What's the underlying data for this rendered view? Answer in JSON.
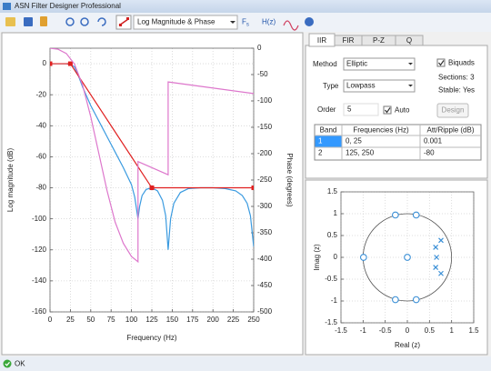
{
  "window": {
    "title": "ASN Filter Designer Professional"
  },
  "toolbar": {
    "view": "Log Magnitude & Phase",
    "fs": {
      "main": "F",
      "sub": "s"
    },
    "hz": "H(z)"
  },
  "tabs": [
    "IIR",
    "FIR",
    "P-Z",
    "Q"
  ],
  "design": {
    "method_label": "Method",
    "method": "Elliptic",
    "type_label": "Type",
    "type": "Lowpass",
    "order_label": "Order",
    "order": 5,
    "auto": "Auto",
    "biquads": "Biquads",
    "sections": "Sections: 3",
    "stable": "Stable: Yes",
    "design_button": "Design"
  },
  "table": {
    "header": [
      "Band",
      "Frequencies (Hz)",
      "Att/Ripple (dB)"
    ],
    "rows": [
      [
        1,
        "0, 25",
        0.001
      ],
      [
        2,
        "125, 250",
        -80
      ]
    ]
  },
  "status": "OK",
  "chart_data": [
    {
      "type": "line",
      "xlabel": "Frequency (Hz)",
      "ylabel": "Log magnitude (dB)",
      "y2label": "Phase (degrees)",
      "xlim": [
        0,
        250
      ],
      "xticks": [
        0,
        25,
        50,
        75,
        100,
        125,
        150,
        175,
        200,
        225,
        250
      ],
      "ylim": [
        -160,
        10
      ],
      "yticks": [
        0,
        -20,
        -40,
        -60,
        -80,
        -100,
        -120,
        -140,
        -160
      ],
      "y2lim": [
        -500,
        0
      ],
      "y2ticks": [
        0,
        -50,
        -100,
        -150,
        -200,
        -250,
        -300,
        -350,
        -400,
        -450,
        -500
      ],
      "grid": true,
      "series": [
        {
          "color": "#3b9be0",
          "x": [
            0,
            20,
            25,
            30,
            35,
            40,
            50,
            60,
            70,
            80,
            90,
            100,
            104,
            108,
            110,
            113,
            118,
            125,
            132,
            138,
            142,
            145,
            148,
            152,
            160,
            170,
            185,
            200,
            215,
            228,
            236,
            242,
            246,
            250
          ],
          "values": [
            0,
            0,
            -0.5,
            -2,
            -8,
            -15,
            -27,
            -37,
            -47,
            -57,
            -67,
            -78,
            -86,
            -100,
            -92,
            -85,
            -81,
            -80,
            -82,
            -88,
            -98,
            -120,
            -100,
            -90,
            -83,
            -80.5,
            -80,
            -80,
            -80.5,
            -82,
            -85,
            -90,
            -98,
            -118
          ]
        },
        {
          "color": "#e02020",
          "marker": "square",
          "x": [
            0,
            25,
            125,
            250
          ],
          "values": [
            0,
            0,
            -80,
            -80
          ]
        },
        {
          "color": "#dd77cc",
          "axis": "y2",
          "x": [
            0,
            10,
            20,
            30,
            40,
            50,
            60,
            70,
            80,
            90,
            100,
            108,
            108,
            145,
            145,
            250
          ],
          "values": [
            0,
            -2,
            -10,
            -30,
            -70,
            -130,
            -200,
            -270,
            -330,
            -370,
            -395,
            -405,
            -215,
            -240,
            -64,
            -86
          ]
        }
      ]
    },
    {
      "type": "scatter",
      "xlabel": "Real (z)",
      "ylabel": "Imag (z)",
      "xlim": [
        -1.5,
        1.5
      ],
      "xticks": [
        -1.5,
        -1,
        -0.5,
        0,
        0.5,
        1,
        1.5
      ],
      "ylim": [
        -1.5,
        1.5
      ],
      "yticks": [
        -1.5,
        -1,
        -0.5,
        0,
        0.5,
        1,
        1.5
      ],
      "grid": true,
      "series": [
        {
          "color": "#3a8fd6",
          "marker": "circle",
          "x": [
            -0.27,
            0.2,
            -0.27,
            0.2,
            -0.99,
            0
          ],
          "values": [
            0.97,
            0.97,
            -0.97,
            -0.97,
            0,
            0
          ]
        },
        {
          "color": "#3a8fd6",
          "marker": "cross",
          "x": [
            0.76,
            0.64,
            0.66,
            0.64,
            0.76
          ],
          "values": [
            0.39,
            0.23,
            0,
            -0.23,
            -0.37
          ]
        }
      ]
    }
  ]
}
